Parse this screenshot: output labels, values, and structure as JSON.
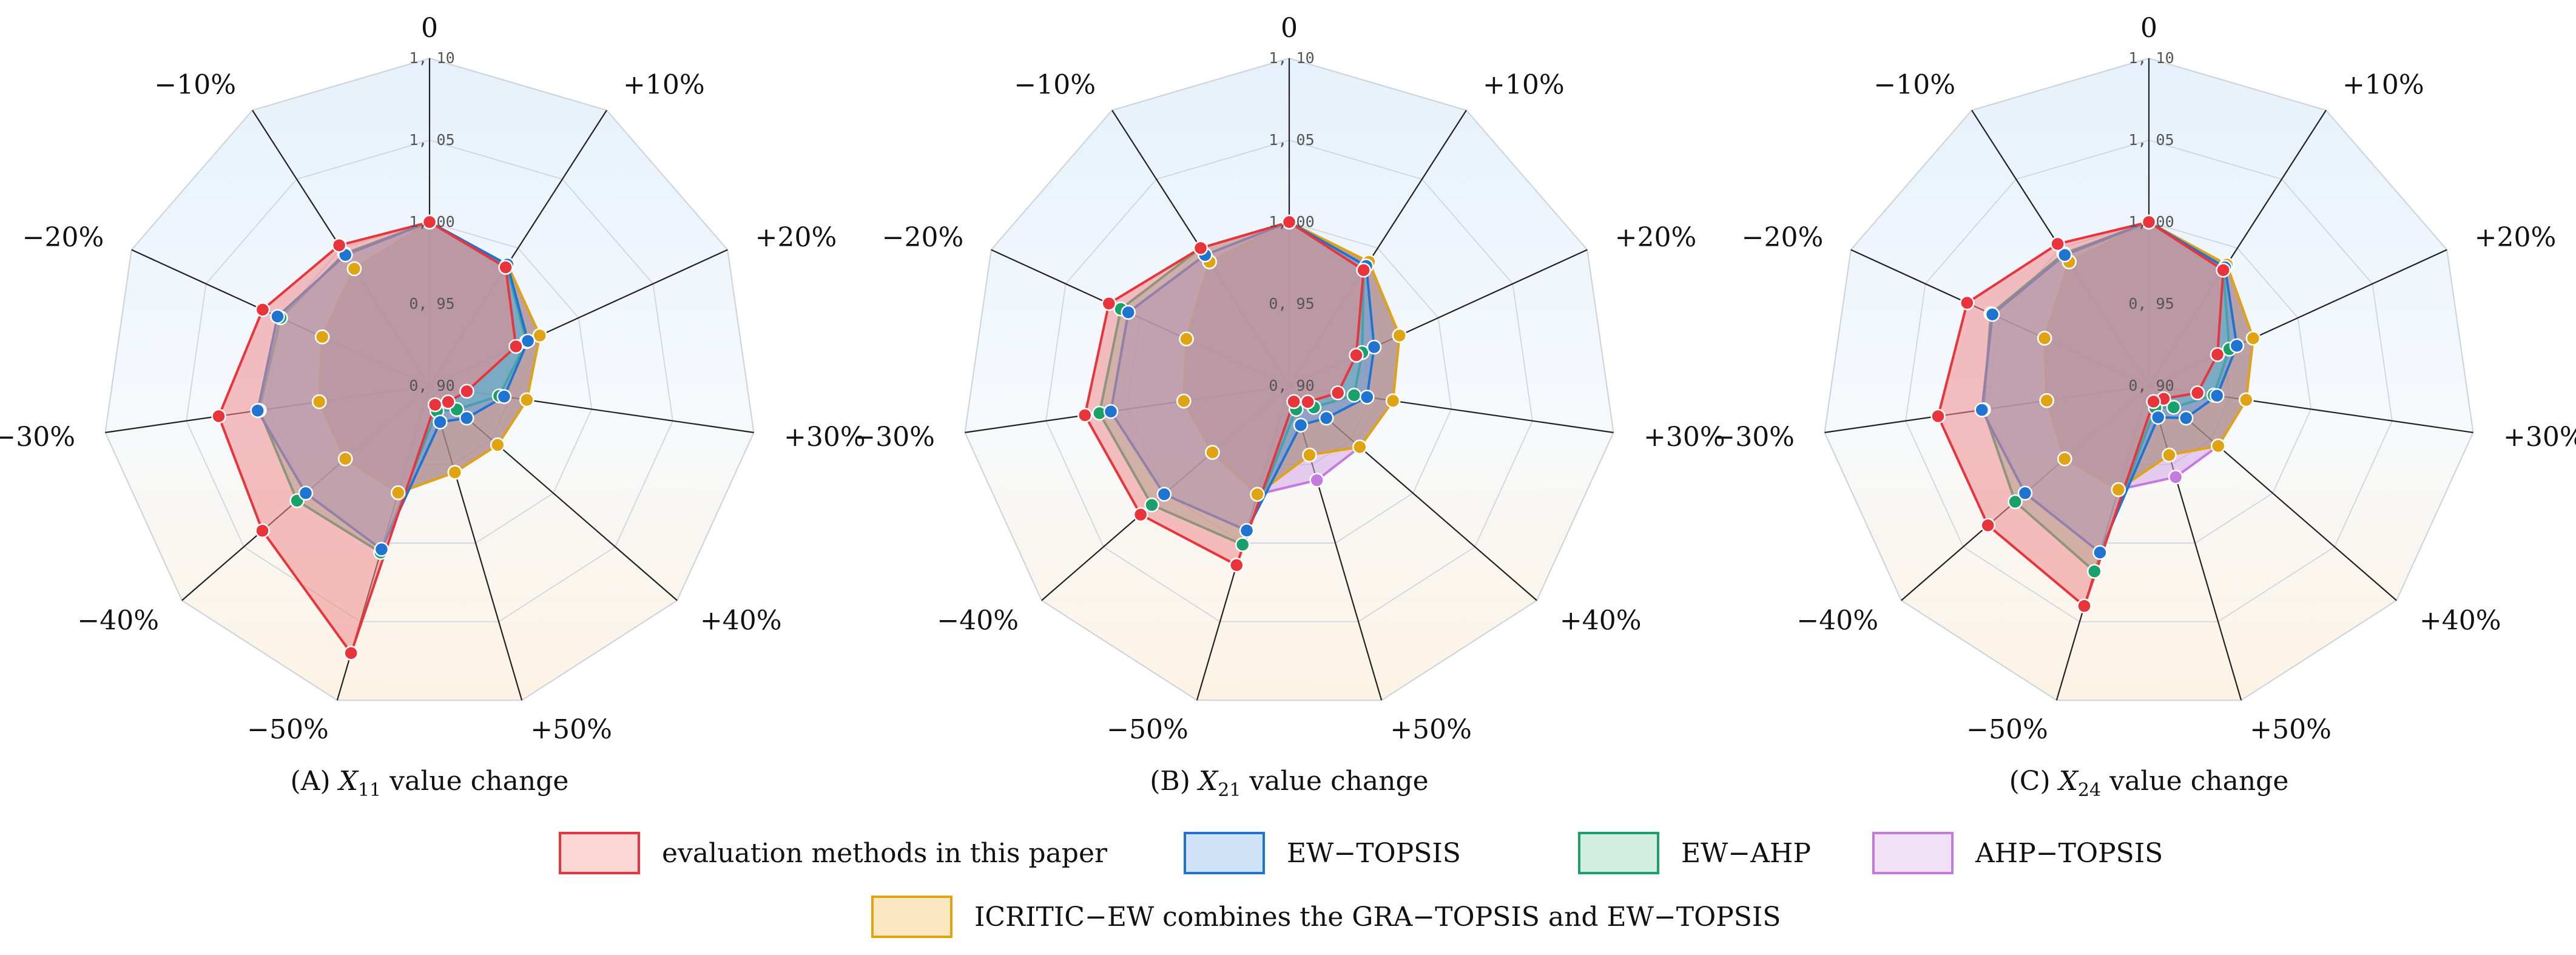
{
  "chart_data": [
    {
      "type": "radar",
      "caption_prefix": "(A) ",
      "caption_var": "X",
      "caption_sub": "11",
      "caption_suffix": " value change",
      "axes": [
        "0",
        "+10%",
        "+20%",
        "+30%",
        "+40%",
        "+50%",
        "−50%",
        "−40%",
        "−30%",
        "−20%",
        "−10%"
      ],
      "rlim": [
        0.9,
        1.1
      ],
      "ticks": [
        {
          "value": 0.9,
          "label": "0, 90"
        },
        {
          "value": 0.95,
          "label": "0, 95"
        },
        {
          "value": 1.0,
          "label": "1, 00"
        },
        {
          "value": 1.05,
          "label": "1, 05"
        },
        {
          "value": 1.1,
          "label": "1, 10"
        }
      ],
      "series": [
        {
          "name": "AHP−TOPSIS",
          "values": [
            1.0,
            0.988,
            0.974,
            0.96,
            0.955,
            0.955,
            0.968,
            0.968,
            0.968,
            0.972,
            0.985
          ]
        },
        {
          "name": "ICRITIC−EW combines the GRA−TOPSIS and EW−TOPSIS",
          "values": [
            1.0,
            0.988,
            0.974,
            0.96,
            0.955,
            0.955,
            0.968,
            0.968,
            0.968,
            0.972,
            0.985
          ]
        },
        {
          "name": "EW−AHP",
          "values": [
            1.0,
            0.987,
            0.965,
            0.943,
            0.922,
            0.916,
            1.006,
            1.007,
            1.005,
            1.0,
            0.996
          ]
        },
        {
          "name": "EW−TOPSIS",
          "values": [
            1.0,
            0.988,
            0.966,
            0.946,
            0.93,
            0.923,
            1.004,
            1.0,
            1.006,
            1.002,
            0.995
          ]
        },
        {
          "name": "evaluation methods in this paper",
          "values": [
            1.0,
            0.986,
            0.958,
            0.923,
            0.915,
            0.912,
            1.07,
            1.035,
            1.03,
            1.012,
            1.002
          ]
        }
      ]
    },
    {
      "type": "radar",
      "caption_prefix": "(B) ",
      "caption_var": "X",
      "caption_sub": "21",
      "caption_suffix": " value change",
      "axes": [
        "0",
        "+10%",
        "+20%",
        "+30%",
        "+40%",
        "+50%",
        "−50%",
        "−40%",
        "−30%",
        "−20%",
        "−10%"
      ],
      "rlim": [
        0.9,
        1.1
      ],
      "ticks": [
        {
          "value": 0.9,
          "label": "0, 90"
        },
        {
          "value": 0.95,
          "label": "0, 95"
        },
        {
          "value": 1.0,
          "label": "1, 00"
        },
        {
          "value": 1.05,
          "label": "1, 05"
        },
        {
          "value": 1.1,
          "label": "1, 10"
        }
      ],
      "series": [
        {
          "name": "AHP−TOPSIS",
          "values": [
            1.0,
            0.99,
            0.974,
            0.964,
            0.957,
            0.96,
            0.969,
            0.962,
            0.965,
            0.969,
            0.99
          ]
        },
        {
          "name": "ICRITIC−EW combines the GRA−TOPSIS and EW−TOPSIS",
          "values": [
            1.0,
            0.99,
            0.974,
            0.964,
            0.957,
            0.944,
            0.969,
            0.962,
            0.965,
            0.969,
            0.99
          ]
        },
        {
          "name": "EW−AHP",
          "values": [
            1.0,
            0.984,
            0.949,
            0.94,
            0.92,
            0.915,
            1.001,
            1.011,
            1.017,
            1.013,
            1.0
          ]
        },
        {
          "name": "EW−TOPSIS",
          "values": [
            1.0,
            0.987,
            0.957,
            0.948,
            0.93,
            0.925,
            0.992,
            1.001,
            1.01,
            1.008,
            0.995
          ]
        },
        {
          "name": "evaluation methods in this paper",
          "values": [
            1.0,
            0.984,
            0.945,
            0.93,
            0.915,
            0.91,
            1.014,
            1.02,
            1.026,
            1.021,
            1.0
          ]
        }
      ]
    },
    {
      "type": "radar",
      "caption_prefix": "(C) ",
      "caption_var": "X",
      "caption_sub": "24",
      "caption_suffix": " value change",
      "axes": [
        "0",
        "+10%",
        "+20%",
        "+30%",
        "+40%",
        "+50%",
        "−50%",
        "−40%",
        "−30%",
        "−20%",
        "−10%"
      ],
      "rlim": [
        0.9,
        1.1
      ],
      "ticks": [
        {
          "value": 0.9,
          "label": "0, 90"
        },
        {
          "value": 0.95,
          "label": "0, 95"
        },
        {
          "value": 1.0,
          "label": "1, 00"
        },
        {
          "value": 1.05,
          "label": "1, 05"
        },
        {
          "value": 1.1,
          "label": "1, 10"
        }
      ],
      "series": [
        {
          "name": "AHP−TOPSIS",
          "values": [
            1.0,
            0.988,
            0.97,
            0.96,
            0.956,
            0.958,
            0.966,
            0.968,
            0.963,
            0.97,
            0.99
          ]
        },
        {
          "name": "ICRITIC−EW combines the GRA−TOPSIS and EW−TOPSIS",
          "values": [
            1.0,
            0.988,
            0.97,
            0.96,
            0.956,
            0.944,
            0.966,
            0.968,
            0.963,
            0.97,
            0.99
          ]
        },
        {
          "name": "EW−AHP",
          "values": [
            1.0,
            0.984,
            0.954,
            0.94,
            0.92,
            0.914,
            1.018,
            1.008,
            1.002,
            1.006,
            0.996
          ]
        },
        {
          "name": "EW−TOPSIS",
          "values": [
            1.0,
            0.986,
            0.959,
            0.942,
            0.93,
            0.92,
            1.006,
            1.0,
            1.003,
            1.005,
            0.995
          ]
        },
        {
          "name": "evaluation methods in this paper",
          "values": [
            1.0,
            0.984,
            0.946,
            0.93,
            0.912,
            0.91,
            1.04,
            1.03,
            1.03,
            1.022,
            1.003
          ]
        }
      ]
    }
  ],
  "legend": [
    {
      "label": "evaluation methods in this paper",
      "fill": "#fcd5d5",
      "stroke": "#e8343a"
    },
    {
      "label": "EW−TOPSIS",
      "fill": "#cfe2f7",
      "stroke": "#1f74d1"
    },
    {
      "label": "EW−AHP",
      "fill": "#d2ede1",
      "stroke": "#1aa06a"
    },
    {
      "label": "AHP−TOPSIS",
      "fill": "#f1e1f6",
      "stroke": "#c47adf"
    },
    {
      "label": "ICRITIC−EW combines the GRA−TOPSIS and EW−TOPSIS",
      "fill": "#fbe8c3",
      "stroke": "#e0a412"
    }
  ],
  "series_colors": {
    "evaluation methods in this paper": "#e8343a",
    "EW−TOPSIS": "#1f74d1",
    "EW−AHP": "#1aa06a",
    "AHP−TOPSIS": "#c47adf",
    "ICRITIC−EW combines the GRA−TOPSIS and EW−TOPSIS": "#e0a412"
  },
  "series_fills": {
    "evaluation methods in this paper": "#f08a8d",
    "EW−TOPSIS": "#6aa3df",
    "EW−AHP": "#6cc79e",
    "AHP−TOPSIS": "#d6a6e8",
    "ICRITIC−EW combines the GRA−TOPSIS and EW−TOPSIS": "#9a7d65"
  }
}
